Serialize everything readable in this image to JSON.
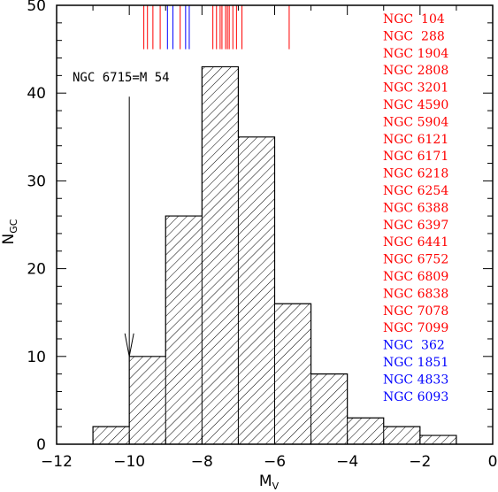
{
  "chart_data": {
    "type": "bar",
    "xlabel_main": "M",
    "xlabel_sub": "V",
    "ylabel_main": "N",
    "ylabel_sub": "GC",
    "xlim": [
      -12,
      0
    ],
    "ylim": [
      0,
      50
    ],
    "x_ticks": [
      -12,
      -10,
      -8,
      -6,
      -4,
      -2,
      0
    ],
    "x_tick_labels": [
      "−12",
      "−10",
      "−8",
      "−6",
      "−4",
      "−2",
      "0"
    ],
    "y_ticks": [
      0,
      10,
      20,
      30,
      40,
      50
    ],
    "y_tick_labels": [
      "0",
      "10",
      "20",
      "30",
      "40",
      "50"
    ],
    "bin_edges": [
      -11,
      -10,
      -9,
      -8,
      -7,
      -6,
      -5,
      -4,
      -3,
      -2,
      -1
    ],
    "values": [
      2,
      10,
      26,
      43,
      35,
      16,
      8,
      3,
      2,
      1
    ],
    "fill_pattern": "diagonal hatch",
    "annotation": {
      "text": "NGC 6715=M 54",
      "arrow_x": -10,
      "arrow_from_y": 40,
      "arrow_to_y": 10
    },
    "red_cluster_ticks": [
      -9.6,
      -9.5,
      -9.35,
      -9.15,
      -8.6,
      -7.7,
      -7.6,
      -7.5,
      -7.45,
      -7.35,
      -7.3,
      -7.25,
      -7.15,
      -7.05,
      -6.9,
      -5.6
    ],
    "blue_cluster_ticks": [
      -8.95,
      -8.8,
      -8.45,
      -8.35
    ],
    "tick_y_range": [
      45,
      50
    ],
    "red_clusters": [
      "NGC  104",
      "NGC  288",
      "NGC 1904",
      "NGC 2808",
      "NGC 3201",
      "NGC 4590",
      "NGC 5904",
      "NGC 6121",
      "NGC 6171",
      "NGC 6218",
      "NGC 6254",
      "NGC 6388",
      "NGC 6397",
      "NGC 6441",
      "NGC 6752",
      "NGC 6809",
      "NGC 6838",
      "NGC 7078",
      "NGC 7099"
    ],
    "blue_clusters": [
      "NGC  362",
      "NGC 1851",
      "NGC 4833",
      "NGC 6093"
    ],
    "colors": {
      "red": "#ff0000",
      "blue": "#0000ff",
      "axis": "#000000"
    }
  }
}
